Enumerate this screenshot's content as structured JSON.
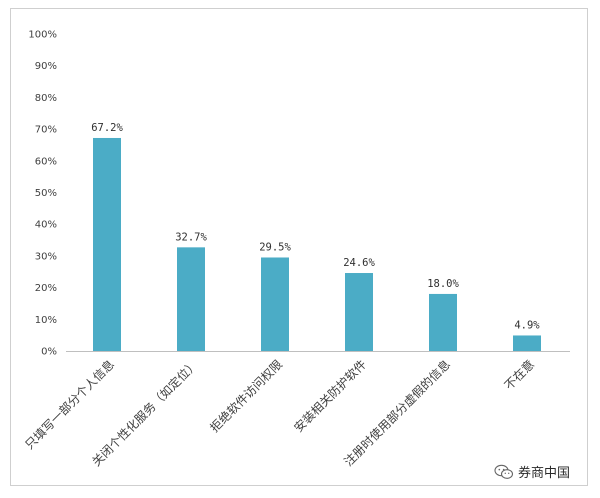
{
  "chart_data": {
    "type": "bar",
    "categories": [
      "只填写一部分个人信息",
      "关闭个性化服务（如定位）",
      "拒绝软件访问权限",
      "安装相关防护软件",
      "注册时使用部分虚假的信息",
      "不在意"
    ],
    "values": [
      67.2,
      32.7,
      29.5,
      24.6,
      18.0,
      4.9
    ],
    "data_labels": [
      "67.2%",
      "32.7%",
      "29.5%",
      "24.6%",
      "18.0%",
      "4.9%"
    ],
    "y_ticks": [
      "0%",
      "10%",
      "20%",
      "30%",
      "40%",
      "50%",
      "60%",
      "70%",
      "80%",
      "90%",
      "100%"
    ],
    "ylim": [
      0,
      100
    ],
    "title": "",
    "xlabel": "",
    "ylabel": "",
    "grid": false,
    "bar_color": "#4bacc6"
  },
  "watermark": {
    "icon": "wechat-icon",
    "text": "券商中国"
  }
}
